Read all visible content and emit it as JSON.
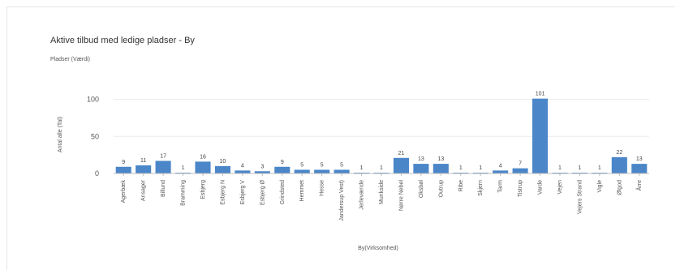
{
  "title": "Aktive tilbud med ledige pladser - By",
  "subtitle": "Pladser (Værdi)",
  "colors": {
    "bar": "#4a86c8",
    "grid": "#ececec",
    "axis": "#bfbfbf",
    "text": "#555555"
  },
  "chart_data": {
    "type": "bar",
    "xlabel": "By(Virksomhed)",
    "ylabel": "Antal alle (Tal)",
    "ylim": [
      0,
      105
    ],
    "yticks": [
      0,
      50,
      100
    ],
    "grid": true,
    "categories": [
      "Agerbæk",
      "Ansager",
      "Billund",
      "Bramming",
      "Esbjerg",
      "Esbjerg N",
      "Esbjerg V",
      "Esbjerg Ø",
      "Grindsted",
      "Hemmet",
      "Hesse",
      "Jandersup Vest)",
      "Jerlevænde",
      "Munkside",
      "Nørre Nebel",
      "Oksbøl",
      "Outrup",
      "Ribe",
      "Skjern",
      "Tarm",
      "Tistrup",
      "Varde",
      "Vejen",
      "Vejers Strand",
      "Vigle",
      "Ølgod",
      "Årre"
    ],
    "values": [
      9,
      11,
      17,
      1,
      16,
      10,
      4,
      3,
      9,
      5,
      5,
      5,
      1,
      1,
      21,
      13,
      13,
      1,
      1,
      4,
      7,
      101,
      1,
      1,
      1,
      22,
      13
    ]
  }
}
